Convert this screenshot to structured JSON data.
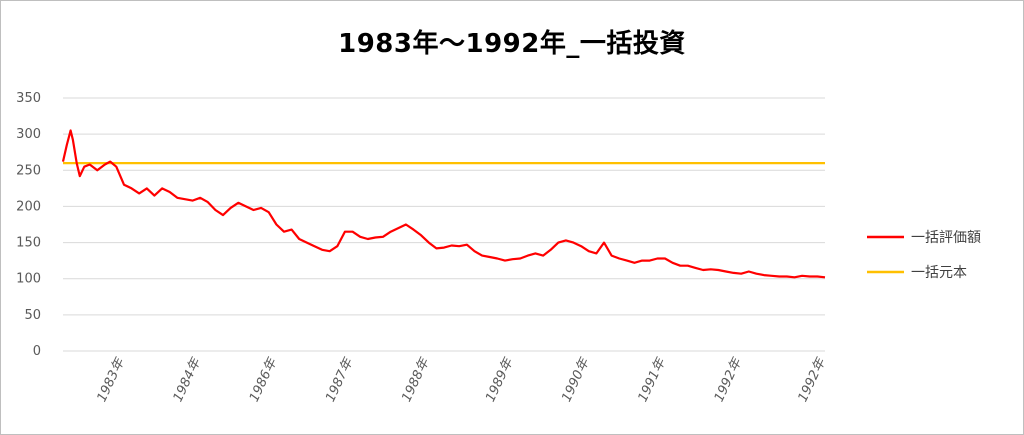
{
  "chart_data": {
    "type": "line",
    "title": "1983年～1992年_一括投資",
    "ylim": [
      0,
      350
    ],
    "yticks": [
      0,
      50,
      100,
      150,
      200,
      250,
      300,
      350
    ],
    "grid": true,
    "legend_position": "right",
    "x_tick_labels": [
      "1983年",
      "1984年",
      "1986年",
      "1987年",
      "1988年",
      "1989年",
      "1990年",
      "1991年",
      "1992年",
      "1992年"
    ],
    "x_tick_positions": [
      0.08,
      0.18,
      0.28,
      0.38,
      0.48,
      0.59,
      0.69,
      0.79,
      0.89,
      1.0
    ],
    "series": [
      {
        "name": "一括評価額",
        "color": "#ff0000",
        "x": [
          0.0,
          0.005,
          0.01,
          0.013,
          0.018,
          0.022,
          0.028,
          0.035,
          0.045,
          0.055,
          0.062,
          0.07,
          0.08,
          0.09,
          0.1,
          0.11,
          0.12,
          0.13,
          0.14,
          0.15,
          0.16,
          0.17,
          0.18,
          0.19,
          0.2,
          0.21,
          0.22,
          0.23,
          0.24,
          0.25,
          0.26,
          0.27,
          0.28,
          0.29,
          0.3,
          0.31,
          0.32,
          0.33,
          0.34,
          0.35,
          0.36,
          0.37,
          0.38,
          0.39,
          0.4,
          0.41,
          0.42,
          0.43,
          0.44,
          0.45,
          0.46,
          0.47,
          0.48,
          0.49,
          0.5,
          0.51,
          0.52,
          0.53,
          0.54,
          0.55,
          0.56,
          0.57,
          0.58,
          0.59,
          0.6,
          0.61,
          0.62,
          0.63,
          0.64,
          0.65,
          0.66,
          0.67,
          0.68,
          0.69,
          0.7,
          0.71,
          0.72,
          0.73,
          0.74,
          0.75,
          0.76,
          0.77,
          0.78,
          0.79,
          0.8,
          0.81,
          0.82,
          0.83,
          0.84,
          0.85,
          0.86,
          0.87,
          0.88,
          0.89,
          0.9,
          0.91,
          0.92,
          0.93,
          0.94,
          0.95,
          0.96,
          0.97,
          0.98,
          0.99,
          1.0
        ],
        "values": [
          262,
          285,
          305,
          292,
          260,
          242,
          255,
          258,
          250,
          258,
          262,
          255,
          230,
          225,
          218,
          225,
          215,
          225,
          220,
          212,
          210,
          208,
          212,
          206,
          195,
          188,
          198,
          205,
          200,
          195,
          198,
          192,
          175,
          165,
          168,
          155,
          150,
          145,
          140,
          138,
          145,
          165,
          165,
          158,
          155,
          157,
          158,
          165,
          170,
          175,
          168,
          160,
          150,
          142,
          143,
          146,
          145,
          147,
          138,
          132,
          130,
          128,
          125,
          127,
          128,
          132,
          135,
          132,
          140,
          150,
          153,
          150,
          145,
          138,
          135,
          150,
          132,
          128,
          125,
          122,
          125,
          125,
          128,
          128,
          122,
          118,
          118,
          115,
          112,
          113,
          112,
          110,
          108,
          107,
          110,
          107,
          105,
          104,
          103,
          103,
          102,
          104,
          103,
          103,
          102
        ]
      },
      {
        "name": "一括元本",
        "color": "#ffc000",
        "x": [
          0.0,
          1.0
        ],
        "values": [
          260,
          260
        ]
      }
    ]
  }
}
